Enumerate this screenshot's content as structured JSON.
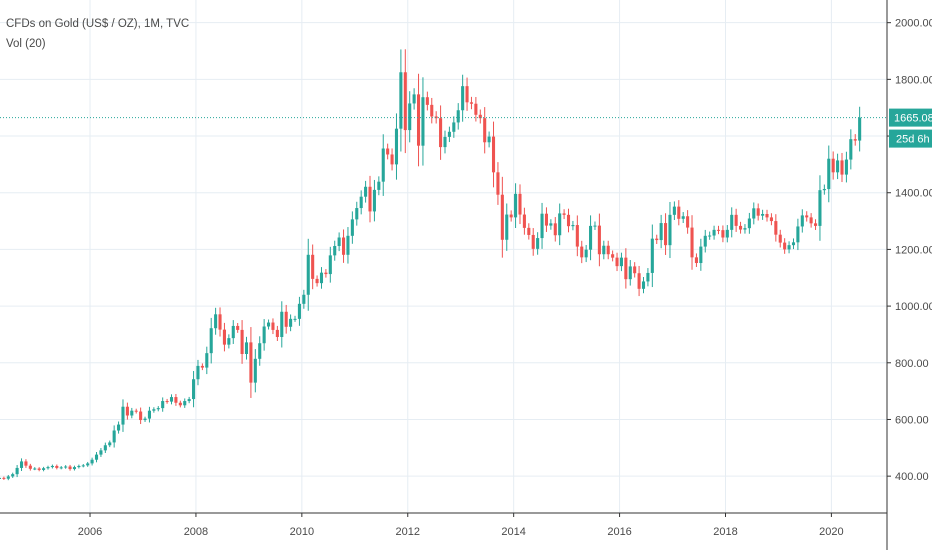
{
  "header": {
    "symbol_line": "CFDs on Gold (US$ / OZ), 1M, TVC",
    "volume_line": "Vol (20)"
  },
  "price_label": "1665.08",
  "countdown_label": "25d 6h",
  "colors": {
    "up": "#26a69a",
    "down": "#ef5350",
    "grid": "#e6edf3",
    "axis_text": "#4a4a4a",
    "price_line": "#26a69a",
    "background": "#ffffff"
  },
  "chart_data": {
    "type": "candlestick",
    "grid": true,
    "x_range": [
      2004.3,
      2021.05
    ],
    "y_range": [
      270,
      2080
    ],
    "y_ticks": [
      "2000.00",
      "1800.00",
      "1600.00",
      "1400.00",
      "1200.00",
      "1000.00",
      "800.00",
      "600.00",
      "400.00"
    ],
    "x_ticks": [
      "2006",
      "2008",
      "2010",
      "2012",
      "2014",
      "2016",
      "2018",
      "2020"
    ],
    "last_price": 1665.08,
    "start_year": 2004.29,
    "month_step": 0.0833,
    "monthly_close": [
      394,
      391,
      399,
      407,
      429,
      452,
      437,
      426,
      427,
      422,
      428,
      432,
      436,
      429,
      431,
      434,
      425,
      432,
      436,
      438,
      445,
      458,
      476,
      491,
      509,
      519,
      561,
      582,
      645,
      614,
      631,
      628,
      598,
      603,
      631,
      636,
      640,
      665,
      663,
      679,
      659,
      650,
      665,
      672,
      742,
      789,
      783,
      834,
      922,
      971,
      917,
      864,
      887,
      930,
      916,
      831,
      872,
      730,
      814,
      869,
      928,
      942,
      916,
      891,
      980,
      927,
      955,
      955,
      1008,
      1040,
      1181,
      1096,
      1081,
      1118,
      1113,
      1179,
      1212,
      1242,
      1181,
      1248,
      1306,
      1346,
      1386,
      1421,
      1334,
      1410,
      1439,
      1556,
      1535,
      1500,
      1626,
      1825,
      1621,
      1715,
      1747,
      1566,
      1737,
      1710,
      1669,
      1663,
      1561,
      1597,
      1615,
      1648,
      1691,
      1776,
      1719,
      1714,
      1675,
      1663,
      1578,
      1598,
      1472,
      1393,
      1234,
      1323,
      1313,
      1396,
      1323,
      1276,
      1251,
      1202,
      1240,
      1326,
      1284,
      1292,
      1250,
      1327,
      1322,
      1282,
      1286,
      1210,
      1172,
      1199,
      1283,
      1284,
      1183,
      1213,
      1183,
      1171,
      1141,
      1171,
      1095,
      1140,
      1116,
      1061,
      1087,
      1117,
      1238,
      1233,
      1293,
      1215,
      1322,
      1351,
      1308,
      1317,
      1277,
      1172,
      1152,
      1210,
      1248,
      1249,
      1269,
      1268,
      1242,
      1269,
      1322,
      1283,
      1270,
      1275,
      1309,
      1345,
      1319,
      1325,
      1313,
      1300,
      1252,
      1224,
      1200,
      1215,
      1225,
      1281,
      1320,
      1313,
      1292,
      1283,
      1409,
      1413,
      1520,
      1472,
      1514,
      1464,
      1517,
      1589,
      1584,
      1665
    ]
  }
}
